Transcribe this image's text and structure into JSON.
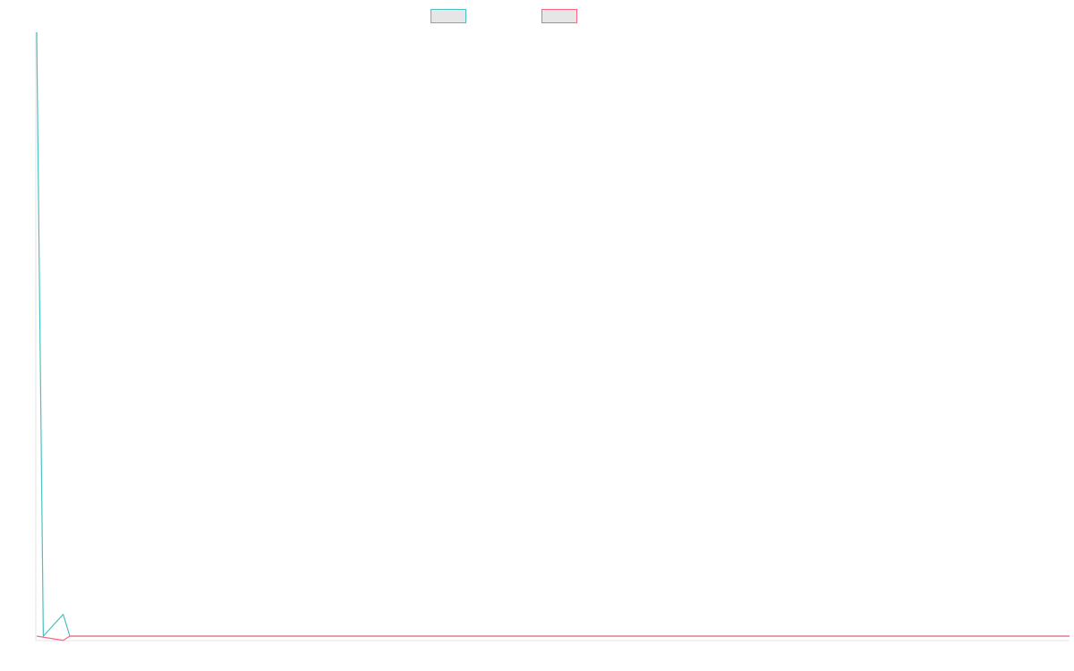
{
  "chart_data": {
    "type": "line",
    "title": "",
    "xlabel": "",
    "ylabel": "",
    "x_count": 157,
    "ylim": [
      0,
      100
    ],
    "grid": false,
    "legend_position": "top",
    "series": [
      {
        "color": "#4bc0c0",
        "points": [
          [
            0,
            100
          ],
          [
            1,
            0
          ],
          [
            4,
            3.6
          ],
          [
            5,
            0
          ],
          [
            156,
            0
          ]
        ]
      },
      {
        "color": "#ff6384",
        "points": [
          [
            0,
            0
          ],
          [
            4,
            -0.7
          ],
          [
            5,
            0
          ],
          [
            156,
            0
          ]
        ]
      }
    ]
  },
  "colors": {
    "axis": "#e5e5e5",
    "legend_fill": "#e6e6e6"
  }
}
